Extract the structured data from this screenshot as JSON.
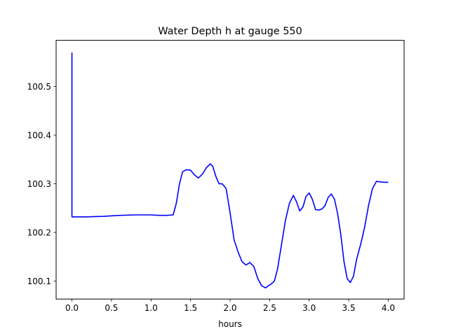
{
  "chart_data": {
    "type": "line",
    "title": "Water Depth h at gauge 550",
    "xlabel": "hours",
    "ylabel": "",
    "xlim": [
      -0.2,
      4.2
    ],
    "ylim": [
      100.063,
      100.595
    ],
    "xticks": [
      0.0,
      0.5,
      1.0,
      1.5,
      2.0,
      2.5,
      3.0,
      3.5,
      4.0
    ],
    "xtick_labels": [
      "0.0",
      "0.5",
      "1.0",
      "1.5",
      "2.0",
      "2.5",
      "3.0",
      "3.5",
      "4.0"
    ],
    "yticks": [
      100.1,
      100.2,
      100.3,
      100.4,
      100.5
    ],
    "ytick_labels": [
      "100.1",
      "100.2",
      "100.3",
      "100.4",
      "100.5"
    ],
    "grid": false,
    "series": [
      {
        "color": "#0000ff",
        "x": [
          0.0,
          0.0,
          0.0,
          0.2,
          0.4,
          0.6,
          0.8,
          1.0,
          1.1,
          1.2,
          1.28,
          1.32,
          1.36,
          1.4,
          1.45,
          1.5,
          1.55,
          1.6,
          1.65,
          1.7,
          1.75,
          1.78,
          1.82,
          1.86,
          1.9,
          1.95,
          2.0,
          2.05,
          2.1,
          2.15,
          2.2,
          2.25,
          2.3,
          2.35,
          2.4,
          2.45,
          2.48,
          2.52,
          2.56,
          2.6,
          2.65,
          2.7,
          2.75,
          2.8,
          2.84,
          2.88,
          2.92,
          2.96,
          3.0,
          3.04,
          3.08,
          3.12,
          3.16,
          3.2,
          3.24,
          3.28,
          3.32,
          3.36,
          3.4,
          3.44,
          3.48,
          3.52,
          3.56,
          3.6,
          3.65,
          3.7,
          3.75,
          3.8,
          3.85,
          3.9,
          3.95,
          4.0
        ],
        "y": [
          100.57,
          100.4,
          100.232,
          100.232,
          100.233,
          100.235,
          100.236,
          100.236,
          100.235,
          100.235,
          100.236,
          100.26,
          100.3,
          100.325,
          100.329,
          100.328,
          100.318,
          100.312,
          100.32,
          100.333,
          100.341,
          100.336,
          100.315,
          100.3,
          100.3,
          100.29,
          100.24,
          100.185,
          100.16,
          100.14,
          100.133,
          100.138,
          100.13,
          100.105,
          100.09,
          100.086,
          100.09,
          100.094,
          100.1,
          100.125,
          100.175,
          100.225,
          100.26,
          100.276,
          100.263,
          100.244,
          100.252,
          100.274,
          100.281,
          100.268,
          100.247,
          100.246,
          100.248,
          100.255,
          100.272,
          100.279,
          100.268,
          100.238,
          100.195,
          100.14,
          100.105,
          100.097,
          100.11,
          100.145,
          100.175,
          100.21,
          100.255,
          100.29,
          100.305,
          100.304,
          100.303,
          100.303
        ]
      }
    ]
  }
}
